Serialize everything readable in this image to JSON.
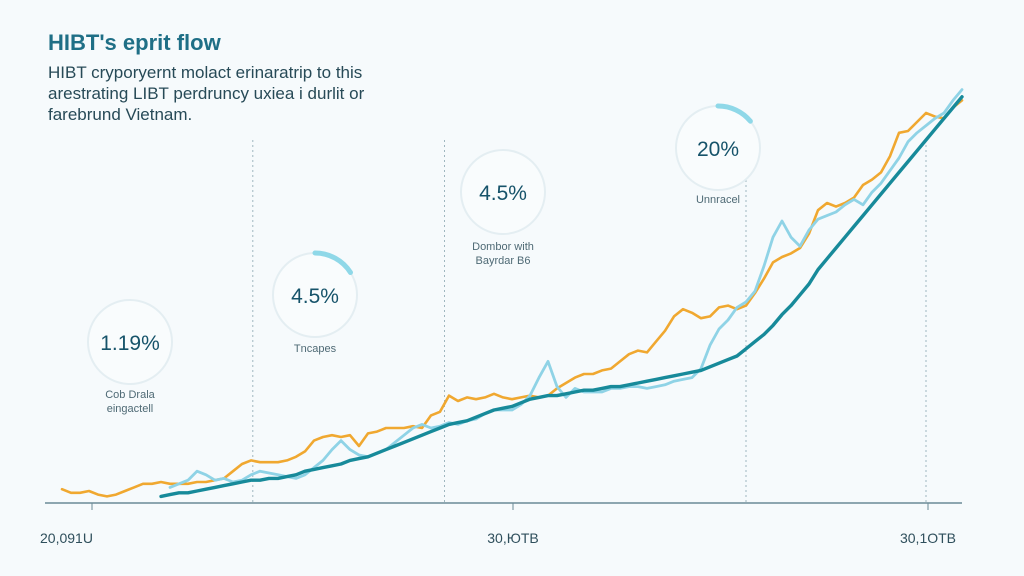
{
  "header": {
    "title": "HIBT's eprit flow",
    "subtitle_lines": [
      "HIBT cryporyernt molact erinaratrip to this",
      "arestrating LIBT perdruncy uxiea i durlit or",
      "farebrund Vietnam."
    ]
  },
  "colors": {
    "orange": "#f0a830",
    "light_blue": "#8fd3e6",
    "teal": "#178a9a",
    "ring_track": "#e4eef2",
    "ring_arc": "#8fd8e8",
    "axis": "#6a8a96"
  },
  "chart_data": {
    "type": "line",
    "title": "HIBT's eprit flow",
    "x_tick_labels": [
      "20,091U",
      "30,ЮTB",
      "30,1OTB"
    ],
    "annotations": [
      {
        "value_text": "1.19%",
        "caption": [
          "Cob Drala",
          "eingactell"
        ],
        "ring_fraction": 0
      },
      {
        "value_text": "4.5%",
        "caption": [
          "Tncapes"
        ],
        "ring_fraction": 0.16
      },
      {
        "value_text": "4.5%",
        "caption": [
          "Dombor with",
          "Bayrdar B6"
        ],
        "ring_fraction": 0
      },
      {
        "value_text": "20%",
        "caption": [
          "Unnracel"
        ],
        "ring_fraction": 0.14
      }
    ],
    "x": [
      0,
      1,
      2,
      3,
      4,
      5,
      6,
      7,
      8,
      9,
      10,
      11,
      12,
      13,
      14,
      15,
      16,
      17,
      18,
      19,
      20,
      21,
      22,
      23,
      24,
      25,
      26,
      27,
      28,
      29,
      30,
      31,
      32,
      33,
      34,
      35,
      36,
      37,
      38,
      39,
      40,
      41,
      42,
      43,
      44,
      45,
      46,
      47,
      48,
      49,
      50,
      51,
      52,
      53,
      54,
      55,
      56,
      57,
      58,
      59,
      60,
      61,
      62,
      63,
      64,
      65,
      66,
      67,
      68,
      69,
      70,
      71,
      72,
      73,
      74,
      75,
      76,
      77,
      78,
      79,
      80,
      81,
      82,
      83,
      84,
      85,
      86,
      87,
      88,
      89,
      90,
      91,
      92,
      93,
      94,
      95,
      96,
      97,
      98,
      99,
      100
    ],
    "series": [
      {
        "color_key": "orange",
        "values": [
          6,
          4,
          4,
          5,
          3,
          2,
          3,
          5,
          7,
          9,
          9,
          10,
          9,
          9,
          9,
          10,
          10,
          11,
          12,
          16,
          20,
          22,
          21,
          21,
          21,
          22,
          24,
          27,
          33,
          35,
          36,
          35,
          36,
          30,
          37,
          38,
          40,
          40,
          40,
          41,
          40,
          47,
          49,
          58,
          55,
          57,
          56,
          57,
          59,
          57,
          56,
          57,
          58,
          57,
          58,
          62,
          65,
          68,
          70,
          70,
          72,
          73,
          77,
          81,
          83,
          82,
          88,
          94,
          102,
          106,
          104,
          101,
          102,
          107,
          108,
          106,
          108,
          115,
          123,
          132,
          135,
          137,
          140,
          148,
          161,
          165,
          163,
          165,
          168,
          175,
          178,
          182,
          191,
          204,
          205,
          210,
          215,
          213,
          212,
          218,
          222
        ]
      },
      {
        "color_key": "light_blue",
        "values": [
          null,
          null,
          null,
          null,
          null,
          null,
          null,
          null,
          null,
          null,
          null,
          null,
          7,
          9,
          11,
          16,
          14,
          11,
          12,
          10,
          11,
          14,
          16,
          15,
          14,
          13,
          12,
          14,
          18,
          22,
          28,
          33,
          28,
          25,
          24,
          26,
          28,
          32,
          36,
          40,
          42,
          40,
          41,
          43,
          42,
          44,
          45,
          48,
          50,
          50,
          50,
          53,
          58,
          68,
          77,
          63,
          57,
          62,
          60,
          60,
          60,
          62,
          62,
          63,
          63,
          62,
          63,
          64,
          66,
          67,
          68,
          73,
          86,
          95,
          100,
          107,
          110,
          116,
          130,
          146,
          155,
          146,
          141,
          150,
          156,
          158,
          160,
          164,
          167,
          164,
          171,
          176,
          183,
          190,
          199,
          204,
          208,
          212,
          215,
          222,
          228
        ]
      },
      {
        "color_key": "teal",
        "values": [
          null,
          null,
          null,
          null,
          null,
          null,
          null,
          null,
          null,
          null,
          null,
          2,
          3,
          4,
          4,
          5,
          6,
          7,
          8,
          9,
          10,
          11,
          11,
          12,
          12,
          13,
          14,
          16,
          17,
          18,
          19,
          20,
          22,
          23,
          24,
          26,
          28,
          30,
          32,
          34,
          36,
          38,
          40,
          42,
          43,
          44,
          46,
          48,
          50,
          51,
          52,
          54,
          56,
          57,
          58,
          58,
          59,
          60,
          61,
          61,
          62,
          63,
          63,
          64,
          65,
          66,
          67,
          68,
          69,
          70,
          71,
          72,
          74,
          76,
          78,
          80,
          84,
          88,
          92,
          97,
          103,
          108,
          114,
          120,
          128,
          134,
          140,
          146,
          152,
          158,
          164,
          170,
          176,
          182,
          188,
          194,
          200,
          206,
          212,
          218,
          224
        ]
      }
    ]
  }
}
